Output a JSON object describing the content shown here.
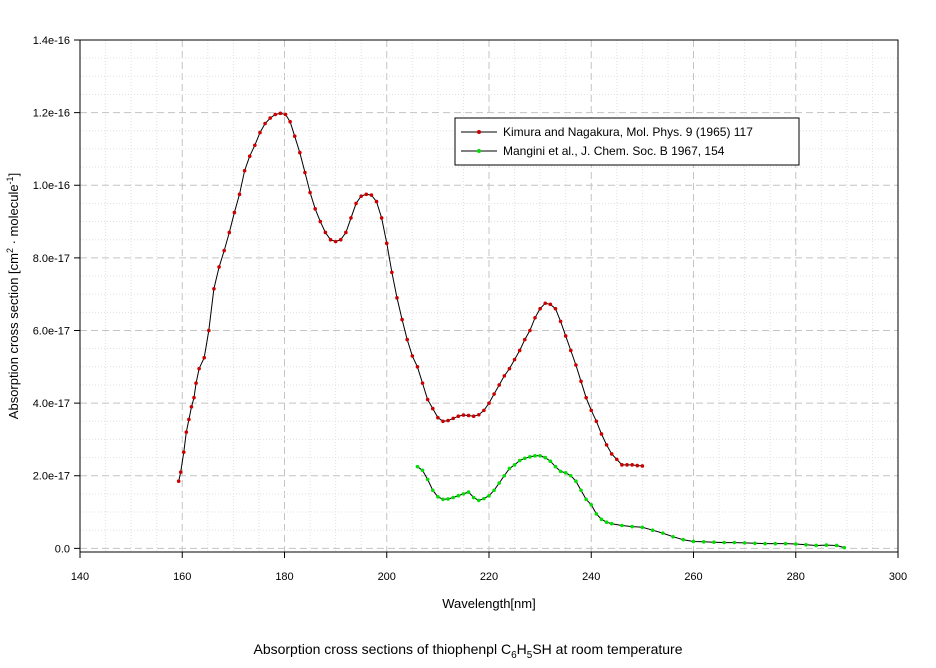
{
  "chart_data": {
    "type": "line",
    "xlabel": "Wavelength[nm]",
    "ylabel_main": "Absorption cross section [cm",
    "ylabel_sup1": "2",
    "ylabel_mid": " · molecule",
    "ylabel_sup2": "-1",
    "ylabel_end": "]",
    "xlim": [
      140,
      300
    ],
    "ylim": [
      -1e-18,
      1.4e-16
    ],
    "xticks": [
      140,
      160,
      180,
      200,
      220,
      240,
      260,
      280,
      300
    ],
    "xtick_labels": [
      "140",
      "160",
      "180",
      "200",
      "220",
      "240",
      "260",
      "280",
      "300"
    ],
    "yticks": [
      0,
      2e-17,
      4e-17,
      6e-17,
      8e-17,
      1e-16,
      1.2e-16,
      1.4e-16
    ],
    "ytick_labels": [
      "0.0",
      "2.0e-17",
      "4.0e-17",
      "6.0e-17",
      "8.0e-17",
      "1.0e-16",
      "1.2e-16",
      "1.4e-16"
    ],
    "grid": true,
    "legend_position": "top-right",
    "caption": {
      "prefix": "Absorption cross sections of thiophenpl C",
      "sub1": "6",
      "mid1": "H",
      "sub2": "5",
      "suffix": "SH at room temperature"
    },
    "series": [
      {
        "name": "Kimura and Nagakura, Mol. Phys. 9 (1965) 117",
        "color": "#cc0000",
        "line_color": "#000000",
        "marker": "circle",
        "x": [
          159.3,
          159.7,
          160.3,
          160.8,
          161.3,
          161.8,
          162.3,
          162.7,
          163.3,
          164.3,
          165.2,
          166.2,
          167.2,
          168.2,
          169.2,
          170.2,
          171.2,
          172.2,
          173.2,
          174.2,
          175.2,
          176.2,
          177.2,
          178.2,
          179.2,
          180.2,
          181.1,
          182.0,
          183.0,
          184.0,
          185.0,
          186.0,
          187.0,
          188.0,
          189.0,
          190.0,
          191.0,
          192.0,
          193.0,
          194.0,
          195.0,
          196.0,
          197.0,
          198.0,
          199.0,
          200.0,
          201.0,
          202.0,
          203.0,
          204.0,
          205.0,
          206.0,
          207.0,
          208.0,
          209.0,
          210.0,
          211.0,
          212.0,
          213.0,
          214.0,
          215.0,
          216.0,
          217.0,
          218.0,
          219.0,
          220.0,
          221.0,
          222.0,
          223.0,
          224.0,
          225.0,
          226.0,
          227.0,
          228.0,
          229.0,
          230.0,
          231.0,
          232.0,
          233.0,
          234.0,
          235.0,
          236.0,
          237.0,
          238.0,
          239.0,
          240.0,
          241.0,
          242.0,
          243.0,
          244.0,
          245.0,
          246.0,
          247.0,
          248.0,
          249.0,
          250.0
        ],
        "y": [
          1.85e-17,
          2.1e-17,
          2.65e-17,
          3.2e-17,
          3.55e-17,
          3.9e-17,
          4.15e-17,
          4.55e-17,
          4.95e-17,
          5.25e-17,
          6e-17,
          7.15e-17,
          7.75e-17,
          8.2e-17,
          8.7e-17,
          9.25e-17,
          9.75e-17,
          1.04e-16,
          1.08e-16,
          1.11e-16,
          1.145e-16,
          1.17e-16,
          1.185e-16,
          1.195e-16,
          1.198e-16,
          1.195e-16,
          1.175e-16,
          1.135e-16,
          1.09e-16,
          1.035e-16,
          9.8e-17,
          9.35e-17,
          9e-17,
          8.7e-17,
          8.5e-17,
          8.45e-17,
          8.5e-17,
          8.7e-17,
          9.1e-17,
          9.5e-17,
          9.7e-17,
          9.75e-17,
          9.73e-17,
          9.55e-17,
          9.1e-17,
          8.4e-17,
          7.6e-17,
          6.9e-17,
          6.3e-17,
          5.75e-17,
          5.3e-17,
          5e-17,
          4.55e-17,
          4.1e-17,
          3.85e-17,
          3.6e-17,
          3.5e-17,
          3.52e-17,
          3.58e-17,
          3.64e-17,
          3.67e-17,
          3.66e-17,
          3.64e-17,
          3.68e-17,
          3.8e-17,
          4e-17,
          4.25e-17,
          4.5e-17,
          4.75e-17,
          4.95e-17,
          5.2e-17,
          5.45e-17,
          5.75e-17,
          6e-17,
          6.35e-17,
          6.6e-17,
          6.75e-17,
          6.72e-17,
          6.6e-17,
          6.25e-17,
          5.85e-17,
          5.45e-17,
          5.05e-17,
          4.6e-17,
          4.15e-17,
          3.8e-17,
          3.5e-17,
          3.15e-17,
          2.85e-17,
          2.6e-17,
          2.45e-17,
          2.3e-17,
          2.3e-17,
          2.3e-17,
          2.28e-17,
          2.27e-17
        ]
      },
      {
        "name": "Mangini et al., J. Chem. Soc. B 1967, 154",
        "color": "#00e000",
        "line_color": "#000000",
        "marker": "circle",
        "x": [
          206.0,
          207.0,
          208.0,
          209.0,
          210.0,
          211.0,
          212.0,
          213.0,
          214.0,
          215.0,
          216.0,
          217.0,
          218.0,
          219.0,
          220.0,
          221.0,
          222.0,
          223.0,
          224.0,
          225.0,
          226.0,
          227.0,
          228.0,
          229.0,
          230.0,
          231.0,
          232.0,
          233.0,
          234.0,
          235.0,
          236.0,
          237.0,
          238.0,
          239.0,
          240.0,
          241.0,
          242.0,
          243.0,
          244.0,
          246.0,
          248.0,
          250.0,
          252.0,
          254.0,
          256.0,
          258.0,
          260.0,
          262.0,
          264.0,
          266.0,
          268.0,
          270.0,
          272.0,
          274.0,
          276.0,
          278.0,
          280.0,
          282.0,
          284.0,
          286.0,
          288.0,
          289.5
        ],
        "y": [
          2.25e-17,
          2.15e-17,
          1.9e-17,
          1.6e-17,
          1.42e-17,
          1.35e-17,
          1.36e-17,
          1.4e-17,
          1.45e-17,
          1.5e-17,
          1.55e-17,
          1.4e-17,
          1.32e-17,
          1.37e-17,
          1.45e-17,
          1.6e-17,
          1.8e-17,
          2e-17,
          2.2e-17,
          2.3e-17,
          2.42e-17,
          2.48e-17,
          2.52e-17,
          2.55e-17,
          2.55e-17,
          2.5e-17,
          2.4e-17,
          2.25e-17,
          2.12e-17,
          2.08e-17,
          2e-17,
          1.85e-17,
          1.6e-17,
          1.35e-17,
          1.2e-17,
          9.5e-18,
          8e-18,
          7.2e-18,
          6.8e-18,
          6.3e-18,
          6e-18,
          5.8e-18,
          5e-18,
          4.2e-18,
          3.2e-18,
          2.4e-18,
          1.9e-18,
          1.8e-18,
          1.7e-18,
          1.6e-18,
          1.6e-18,
          1.5e-18,
          1.4e-18,
          1.3e-18,
          1.3e-18,
          1.3e-18,
          1.2e-18,
          1e-18,
          8e-19,
          9e-19,
          8e-19,
          2e-19
        ]
      }
    ]
  }
}
